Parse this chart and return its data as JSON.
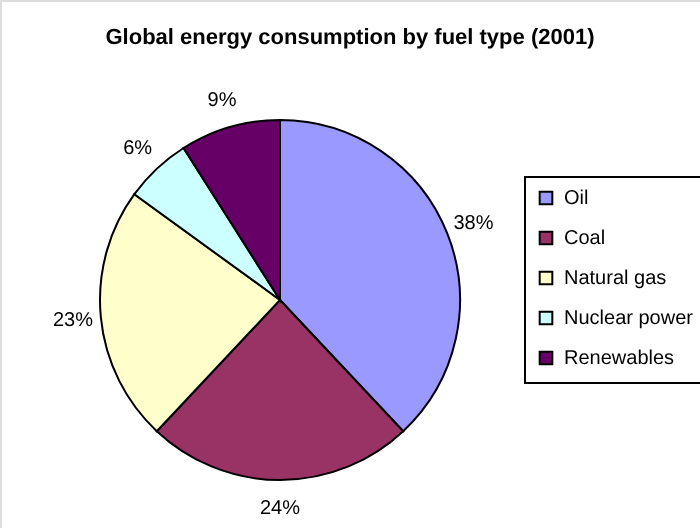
{
  "chart_data": {
    "type": "pie",
    "title": "Global energy consumption by fuel type (2001)",
    "categories": [
      "Oil",
      "Coal",
      "Natural gas",
      "Nuclear power",
      "Renewables"
    ],
    "values": [
      38,
      24,
      23,
      6,
      9
    ],
    "colors": [
      "#9999ff",
      "#993366",
      "#ffffcc",
      "#ccffff",
      "#660066"
    ],
    "value_labels": [
      "38%",
      "24%",
      "23%",
      "6%",
      "9%"
    ],
    "legend": "right"
  }
}
